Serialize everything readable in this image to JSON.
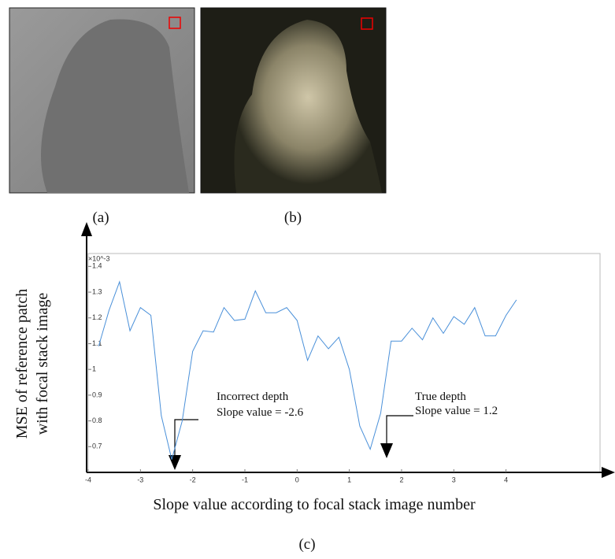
{
  "panel_labels": [
    "(a)",
    "(b)",
    "(c)"
  ],
  "chart_data": {
    "type": "line",
    "ylabel": [
      "MSE of reference patch",
      "with focal stack image"
    ],
    "xlabel": "Slope value according to focal stack image number",
    "y_multiplier": "×10^-3",
    "annotations": [
      "Incorrect depth",
      "Slope value = -2.6",
      "True depth",
      "Slope value = 1.2"
    ],
    "x": [
      -3.8,
      -3.6,
      -3.4,
      -3.2,
      -3.0,
      -2.8,
      -2.6,
      -2.4,
      -2.2,
      -2.0,
      -1.8,
      -1.6,
      -1.4,
      -1.2,
      -1.0,
      -0.8,
      -0.6,
      -0.4,
      -0.2,
      0,
      0.2,
      0.4,
      0.6,
      0.8,
      1.0,
      1.2,
      1.4,
      1.6,
      1.8,
      2.0,
      2.2,
      2.4,
      2.6,
      2.8,
      3.0,
      3.2,
      3.4,
      3.6,
      3.8,
      4.0,
      4.2
    ],
    "series": [
      {
        "color": "#4a90d9",
        "values": [
          1.09,
          1.23,
          1.34,
          1.15,
          1.24,
          1.21,
          0.82,
          0.65,
          0.8,
          1.07,
          1.15,
          1.145,
          1.24,
          1.19,
          1.195,
          1.305,
          1.22,
          1.22,
          1.24,
          1.19,
          1.035,
          1.13,
          1.08,
          1.125,
          1.0,
          0.78,
          0.69,
          0.83,
          1.11,
          1.11,
          1.16,
          1.115,
          1.2,
          1.14,
          1.205,
          1.175,
          1.24,
          1.13,
          1.13,
          1.21,
          1.27
        ]
      }
    ],
    "xlim": [
      -4,
      5.8
    ],
    "xticks": [
      -4,
      -3,
      -2,
      -1,
      0,
      1,
      2,
      3,
      4
    ],
    "ylim": [
      0.6,
      1.45
    ],
    "yticks": [
      0.7,
      0.8,
      0.9,
      1,
      1.1,
      1.2,
      1.3,
      1.4
    ]
  }
}
